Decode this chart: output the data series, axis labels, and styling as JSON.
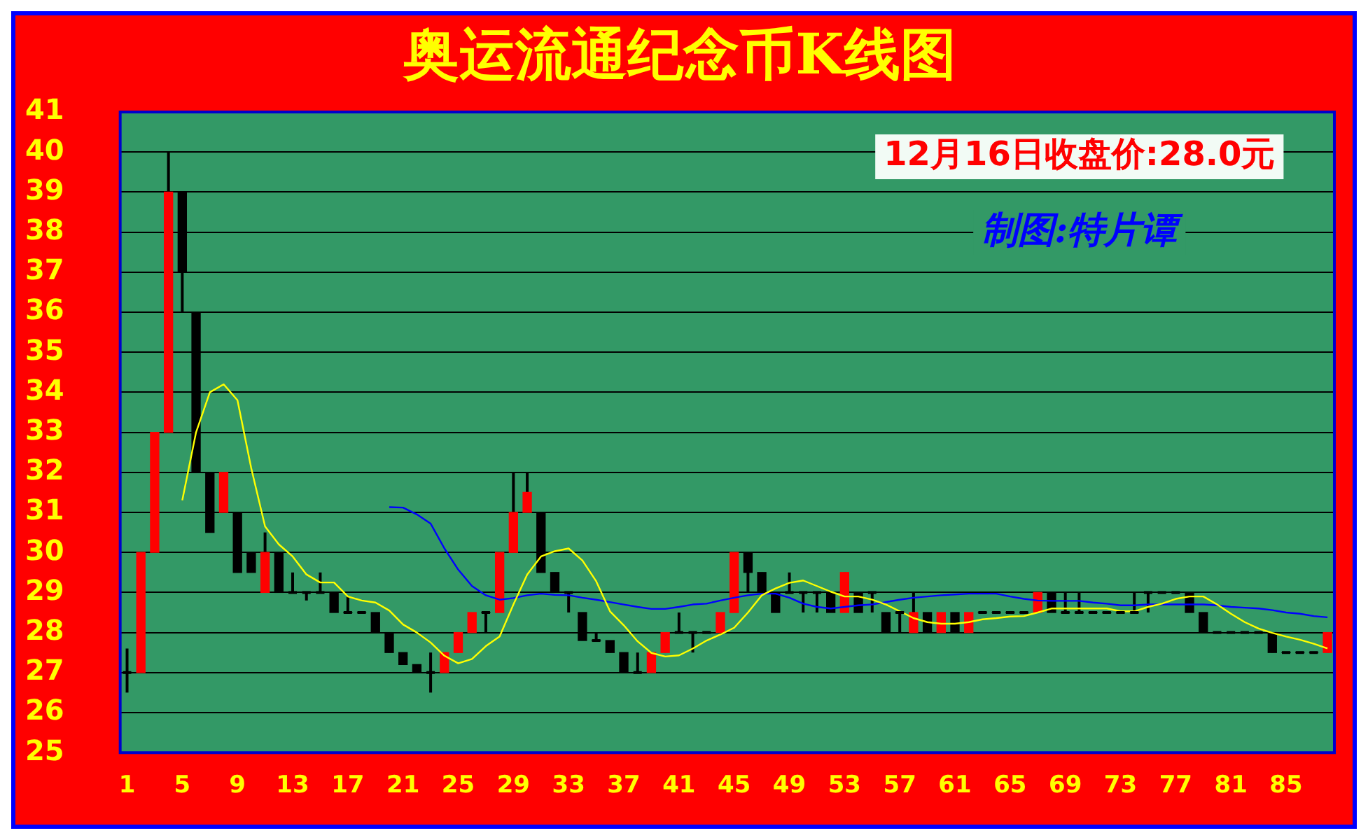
{
  "chart_data": {
    "type": "candlestick",
    "title": "奥运流通纪念币K线图",
    "annotations": [
      "12月16日收盘价:28.0元",
      "制图:特片谭"
    ],
    "x": [
      1,
      2,
      3,
      4,
      5,
      6,
      7,
      8,
      9,
      10,
      11,
      12,
      13,
      14,
      15,
      16,
      17,
      18,
      19,
      20,
      21,
      22,
      23,
      24,
      25,
      26,
      27,
      28,
      29,
      30,
      31,
      32,
      33,
      34,
      35,
      36,
      37,
      38,
      39,
      40,
      41,
      42,
      43,
      44,
      45,
      46,
      47,
      48,
      49,
      50,
      51,
      52,
      53,
      54,
      55,
      56,
      57,
      58,
      59,
      60,
      61,
      62,
      63,
      64,
      65,
      66,
      67,
      68,
      69,
      70,
      71,
      72,
      73,
      74,
      75,
      76,
      77,
      78,
      79,
      80,
      81,
      82,
      83,
      84,
      85,
      86,
      87,
      88
    ],
    "ohlc": [
      [
        27,
        27.6,
        26.5,
        27
      ],
      [
        27,
        30,
        27,
        30
      ],
      [
        30,
        33,
        30,
        33
      ],
      [
        33,
        40,
        33,
        39
      ],
      [
        39,
        39,
        36,
        37
      ],
      [
        36,
        36,
        32,
        32
      ],
      [
        32,
        32,
        30.5,
        30.5
      ],
      [
        31,
        32,
        31,
        32
      ],
      [
        31,
        31,
        29.5,
        29.5
      ],
      [
        30,
        30,
        29.5,
        29.5
      ],
      [
        29,
        30.5,
        29,
        30
      ],
      [
        30,
        30,
        29,
        29
      ],
      [
        29,
        29.5,
        29,
        29
      ],
      [
        29,
        29,
        28.8,
        29
      ],
      [
        29,
        29.5,
        29,
        29
      ],
      [
        29,
        29,
        28.5,
        28.5
      ],
      [
        28.5,
        28.9,
        28.5,
        28.5
      ],
      [
        28.5,
        28.5,
        28.5,
        28.5
      ],
      [
        28.5,
        28.5,
        28,
        28
      ],
      [
        28,
        28,
        27.5,
        27.5
      ],
      [
        27.5,
        27.5,
        27.2,
        27.2
      ],
      [
        27.2,
        27.2,
        27,
        27
      ],
      [
        27,
        27.5,
        26.5,
        27
      ],
      [
        27,
        27.5,
        27,
        27.5
      ],
      [
        27.5,
        28,
        27.5,
        28
      ],
      [
        28,
        28.5,
        28,
        28.5
      ],
      [
        28.5,
        28.5,
        28,
        28.5
      ],
      [
        28.5,
        30,
        28.5,
        30
      ],
      [
        30,
        32,
        30,
        31
      ],
      [
        31,
        32,
        31,
        31.5
      ],
      [
        31,
        31,
        29.5,
        29.5
      ],
      [
        29.5,
        29.5,
        29,
        29
      ],
      [
        29,
        29,
        28.5,
        29
      ],
      [
        28.5,
        28.5,
        27.8,
        27.8
      ],
      [
        27.8,
        28,
        27.8,
        27.8
      ],
      [
        27.8,
        27.8,
        27.5,
        27.5
      ],
      [
        27.5,
        27.5,
        27,
        27
      ],
      [
        27,
        27.5,
        27,
        27
      ],
      [
        27,
        27.5,
        27,
        27.5
      ],
      [
        27.5,
        28,
        27.5,
        28
      ],
      [
        28,
        28.5,
        28,
        28
      ],
      [
        28,
        28,
        27.5,
        28
      ],
      [
        28,
        28,
        28,
        28
      ],
      [
        28,
        28.5,
        28,
        28.5
      ],
      [
        28.5,
        30,
        28.5,
        30
      ],
      [
        30,
        30,
        29,
        29.5
      ],
      [
        29.5,
        29.5,
        29,
        29
      ],
      [
        29,
        29,
        28.5,
        28.5
      ],
      [
        29,
        29.5,
        29,
        29
      ],
      [
        29,
        29,
        28.5,
        29
      ],
      [
        29,
        29,
        28.5,
        29
      ],
      [
        29,
        29,
        28.5,
        28.5
      ],
      [
        28.5,
        29.5,
        28.5,
        29.5
      ],
      [
        29,
        29,
        28.5,
        28.5
      ],
      [
        29,
        29,
        28.5,
        29
      ],
      [
        28.5,
        28.5,
        28,
        28
      ],
      [
        28.5,
        28.5,
        28,
        28.5
      ],
      [
        28,
        29,
        28,
        28.5
      ],
      [
        28.5,
        28.5,
        28,
        28
      ],
      [
        28,
        28.5,
        28,
        28.5
      ],
      [
        28.5,
        28.5,
        28,
        28
      ],
      [
        28,
        28.5,
        28,
        28.5
      ],
      [
        28.5,
        28.5,
        28.5,
        28.5
      ],
      [
        28.5,
        28.5,
        28.5,
        28.5
      ],
      [
        28.5,
        28.5,
        28.5,
        28.5
      ],
      [
        28.5,
        28.5,
        28.5,
        28.5
      ],
      [
        28.5,
        29,
        28.5,
        29
      ],
      [
        29,
        29,
        28.5,
        28.5
      ],
      [
        28.5,
        29,
        28.5,
        28.5
      ],
      [
        28.5,
        29,
        28.5,
        28.5
      ],
      [
        28.5,
        28.5,
        28.5,
        28.5
      ],
      [
        28.5,
        28.5,
        28.5,
        28.5
      ],
      [
        28.5,
        28.5,
        28.5,
        28.5
      ],
      [
        28.5,
        29,
        28.5,
        28.5
      ],
      [
        29,
        29,
        28.5,
        29
      ],
      [
        29,
        29,
        29,
        29
      ],
      [
        29,
        29,
        29,
        29
      ],
      [
        29,
        29,
        28.5,
        28.5
      ],
      [
        28.5,
        28.5,
        28,
        28
      ],
      [
        28,
        28,
        28,
        28
      ],
      [
        28,
        28,
        28,
        28
      ],
      [
        28,
        28,
        28,
        28
      ],
      [
        28,
        28,
        28,
        28
      ],
      [
        28,
        28,
        27.5,
        27.5
      ],
      [
        27.5,
        27.5,
        27.5,
        27.5
      ],
      [
        27.5,
        27.5,
        27.5,
        27.5
      ],
      [
        27.5,
        27.5,
        27.5,
        27.5
      ],
      [
        27.5,
        28,
        27.5,
        28
      ]
    ],
    "colors": [
      "#000000",
      "#ff0000",
      "#ff0000",
      "#ff0000",
      "#000000",
      "#000000",
      "#000000",
      "#ff0000",
      "#000000",
      "#000000",
      "#ff0000",
      "#000000",
      "#000000",
      "#000000",
      "#000000",
      "#000000",
      "#000000",
      "#000000",
      "#000000",
      "#000000",
      "#000000",
      "#000000",
      "#000000",
      "#ff0000",
      "#ff0000",
      "#ff0000",
      "#000000",
      "#ff0000",
      "#ff0000",
      "#ff0000",
      "#000000",
      "#000000",
      "#000000",
      "#000000",
      "#000000",
      "#000000",
      "#000000",
      "#000000",
      "#ff0000",
      "#ff0000",
      "#000000",
      "#000000",
      "#000000",
      "#ff0000",
      "#ff0000",
      "#000000",
      "#000000",
      "#000000",
      "#000000",
      "#000000",
      "#000000",
      "#000000",
      "#ff0000",
      "#000000",
      "#000000",
      "#000000",
      "#000000",
      "#ff0000",
      "#000000",
      "#ff0000",
      "#000000",
      "#ff0000",
      "#000000",
      "#000000",
      "#000000",
      "#000000",
      "#ff0000",
      "#000000",
      "#000000",
      "#000000",
      "#000000",
      "#000000",
      "#000000",
      "#000000",
      "#000000",
      "#000000",
      "#000000",
      "#000000",
      "#000000",
      "#000000",
      "#000000",
      "#000000",
      "#000000",
      "#000000",
      "#000000",
      "#000000",
      "#000000",
      "#ff0000"
    ],
    "series": [
      {
        "type": "line",
        "color": "#ffff00",
        "x": [
          5,
          6,
          7,
          8,
          9,
          10,
          11,
          12,
          13,
          14,
          15,
          16,
          17,
          18,
          19,
          20,
          21,
          22,
          23,
          24,
          25,
          26,
          27,
          28,
          29,
          30,
          31,
          32,
          33,
          34,
          35,
          36,
          37,
          38,
          39,
          40,
          41,
          42,
          43,
          44,
          45,
          46,
          47,
          48,
          49,
          50,
          51,
          52,
          53,
          54,
          55,
          56,
          57,
          58,
          59,
          60,
          61,
          62,
          63,
          64,
          65,
          66,
          67,
          68,
          69,
          70,
          71,
          72,
          73,
          74,
          75,
          76,
          77,
          78,
          79,
          80,
          81,
          82,
          83,
          84,
          85,
          86,
          87,
          88
        ],
        "values": [
          31.3,
          33.0,
          34.0,
          34.2,
          33.8,
          32.1,
          30.65,
          30.2,
          29.9,
          29.45,
          29.25,
          29.25,
          28.9,
          28.8,
          28.75,
          28.55,
          28.2,
          28.0,
          27.75,
          27.42,
          27.23,
          27.34,
          27.66,
          27.9,
          28.7,
          29.45,
          29.9,
          30.03,
          30.1,
          29.8,
          29.28,
          28.53,
          28.18,
          27.78,
          27.49,
          27.4,
          27.43,
          27.6,
          27.8,
          27.95,
          28.12,
          28.5,
          28.93,
          29.1,
          29.24,
          29.3,
          29.16,
          29.02,
          28.9,
          28.9,
          28.82,
          28.7,
          28.53,
          28.36,
          28.26,
          28.22,
          28.22,
          28.26,
          28.33,
          28.36,
          28.4,
          28.41,
          28.5,
          28.6,
          28.6,
          28.6,
          28.6,
          28.6,
          28.53,
          28.53,
          28.64,
          28.72,
          28.84,
          28.9,
          28.9,
          28.7,
          28.47,
          28.26,
          28.1,
          27.99,
          27.9,
          27.82,
          27.72,
          27.6
        ]
      },
      {
        "type": "line",
        "color": "#0000ff",
        "x": [
          20,
          21,
          22,
          23,
          24,
          25,
          26,
          27,
          28,
          29,
          30,
          31,
          32,
          33,
          34,
          35,
          36,
          37,
          38,
          39,
          40,
          41,
          42,
          43,
          44,
          45,
          46,
          47,
          48,
          49,
          50,
          51,
          52,
          53,
          54,
          55,
          56,
          57,
          58,
          59,
          60,
          61,
          62,
          63,
          64,
          65,
          66,
          67,
          68,
          69,
          70,
          71,
          72,
          73,
          74,
          75,
          76,
          77,
          78,
          79,
          80,
          81,
          82,
          83,
          84,
          85,
          86,
          87,
          88
        ],
        "values": [
          31.13,
          31.12,
          30.95,
          30.72,
          30.1,
          29.57,
          29.16,
          28.93,
          28.82,
          28.86,
          28.93,
          28.97,
          28.94,
          28.93,
          28.87,
          28.82,
          28.76,
          28.7,
          28.64,
          28.59,
          28.59,
          28.64,
          28.7,
          28.72,
          28.8,
          28.87,
          28.93,
          28.97,
          28.97,
          28.87,
          28.72,
          28.64,
          28.6,
          28.64,
          28.68,
          28.7,
          28.76,
          28.82,
          28.87,
          28.9,
          28.93,
          28.95,
          28.97,
          28.97,
          28.97,
          28.9,
          28.84,
          28.8,
          28.79,
          28.79,
          28.79,
          28.75,
          28.72,
          28.68,
          28.68,
          28.7,
          28.7,
          28.7,
          28.7,
          28.7,
          28.68,
          28.64,
          28.62,
          28.6,
          28.56,
          28.5,
          28.47,
          28.41,
          28.38
        ]
      }
    ],
    "xlim": [
      0.5,
      88.5
    ],
    "xticks": [
      1,
      5,
      9,
      13,
      17,
      21,
      25,
      29,
      33,
      37,
      41,
      45,
      49,
      53,
      57,
      61,
      65,
      69,
      73,
      77,
      81,
      85
    ],
    "ylim": [
      25,
      41
    ],
    "yticks": [
      25,
      26,
      27,
      28,
      29,
      30,
      31,
      32,
      33,
      34,
      35,
      36,
      37,
      38,
      39,
      40,
      41
    ],
    "grid": "y"
  }
}
